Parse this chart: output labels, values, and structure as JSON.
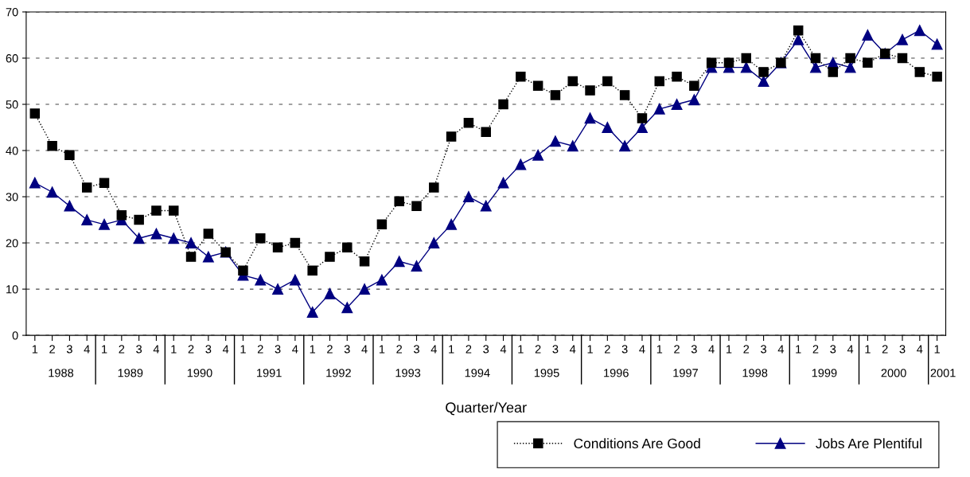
{
  "chart_data": {
    "type": "line",
    "xlabel": "Quarter/Year",
    "categories": [
      "1",
      "2",
      "3",
      "4",
      "1",
      "2",
      "3",
      "4",
      "1",
      "2",
      "3",
      "4",
      "1",
      "2",
      "3",
      "4",
      "1",
      "2",
      "3",
      "4",
      "1",
      "2",
      "3",
      "4",
      "1",
      "2",
      "3",
      "4",
      "1",
      "2",
      "3",
      "4",
      "1",
      "2",
      "3",
      "4",
      "1",
      "2",
      "3",
      "4",
      "1",
      "2",
      "3",
      "4",
      "1",
      "2",
      "3",
      "4",
      "1",
      "2",
      "3",
      "4",
      "1"
    ],
    "annotations": [
      "1988",
      "1989",
      "1990",
      "1991",
      "1992",
      "1993",
      "1994",
      "1995",
      "1996",
      "1997",
      "1998",
      "1999",
      "2000",
      "2001"
    ],
    "series": [
      {
        "name": "Conditions Are Good",
        "color": "#000000",
        "marker": "square",
        "line_style": "dotted",
        "values": [
          48,
          41,
          39,
          32,
          33,
          26,
          25,
          27,
          27,
          17,
          22,
          18,
          14,
          21,
          19,
          20,
          14,
          17,
          19,
          16,
          24,
          29,
          28,
          32,
          43,
          46,
          44,
          50,
          56,
          54,
          52,
          55,
          53,
          55,
          52,
          47,
          55,
          56,
          54,
          59,
          59,
          60,
          57,
          59,
          66,
          60,
          57,
          60,
          59,
          61,
          60,
          57,
          56
        ]
      },
      {
        "name": "Jobs Are Plentiful",
        "color": "#000080",
        "marker": "triangle",
        "line_style": "solid",
        "values": [
          33,
          31,
          28,
          25,
          24,
          25,
          21,
          22,
          21,
          20,
          17,
          18,
          13,
          12,
          10,
          12,
          5,
          9,
          6,
          10,
          12,
          16,
          15,
          20,
          24,
          30,
          28,
          33,
          37,
          39,
          42,
          41,
          47,
          45,
          41,
          45,
          49,
          50,
          51,
          58,
          58,
          58,
          55,
          59,
          64,
          58,
          59,
          58,
          65,
          61,
          64,
          66,
          63
        ]
      }
    ],
    "ylim": [
      0,
      70
    ],
    "yticks": [
      0,
      10,
      20,
      30,
      40,
      50,
      60,
      70
    ],
    "grid": "y",
    "legend": "bottom right"
  }
}
